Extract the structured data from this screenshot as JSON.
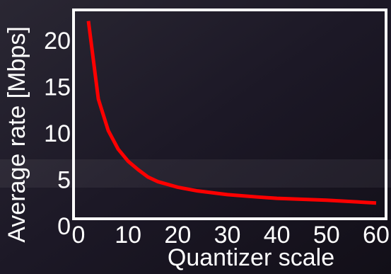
{
  "chart_data": {
    "type": "line",
    "x_label": "Quantizer scale",
    "y_label": "Average rate [Mbps]",
    "series": [
      {
        "color": "#ff0000",
        "x": [
          2,
          4,
          6,
          8,
          10,
          12,
          14,
          16,
          20,
          24,
          30,
          36,
          40,
          50,
          60
        ],
        "values": [
          22.3,
          13.9,
          10.5,
          8.5,
          7.2,
          6.3,
          5.5,
          5.0,
          4.4,
          4.0,
          3.6,
          3.35,
          3.2,
          3.0,
          2.7
        ]
      }
    ],
    "xlim": [
      -1,
      62
    ],
    "ylim": [
      1,
      23.5
    ],
    "xticks": [
      0,
      10,
      20,
      30,
      40,
      50,
      60
    ],
    "yticks": [
      0,
      5,
      10,
      15,
      20
    ]
  }
}
